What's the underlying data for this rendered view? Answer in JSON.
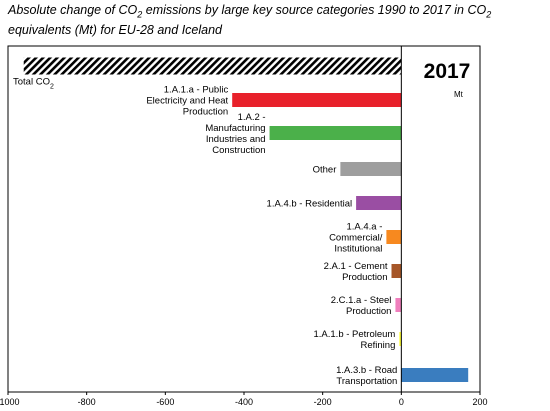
{
  "chart_data": {
    "type": "bar",
    "orientation": "horizontal",
    "title_parts": [
      {
        "text": "Absolute change of CO"
      },
      {
        "text": "2",
        "sub": true
      },
      {
        "text": " emissions by large key source categories 1990 to 2017 in CO"
      },
      {
        "text": "2",
        "sub": true
      },
      {
        "text": " equivalents (Mt) for EU-28 and Iceland"
      }
    ],
    "year_label": "2017",
    "unit_label": "Mt",
    "xlim": [
      -1000,
      200
    ],
    "xticks": [
      -1000,
      -800,
      -600,
      -400,
      -200,
      0,
      200
    ],
    "grid": false,
    "categories": [
      {
        "lines": [
          {
            "parts": [
              {
                "text": "Total CO"
              },
              {
                "text": "2",
                "sub": true
              }
            ]
          }
        ],
        "value": -960,
        "color": "#000000",
        "pattern": "hatch",
        "label_position": "below-left"
      },
      {
        "lines": [
          {
            "parts": [
              {
                "text": "1.A.1.a - Public"
              }
            ]
          },
          {
            "parts": [
              {
                "text": "Electricity and Heat"
              }
            ]
          },
          {
            "parts": [
              {
                "text": "Production"
              }
            ]
          }
        ],
        "value": -430,
        "color": "#e8212b"
      },
      {
        "lines": [
          {
            "parts": [
              {
                "text": "1.A.2 -"
              }
            ]
          },
          {
            "parts": [
              {
                "text": "Manufacturing"
              }
            ]
          },
          {
            "parts": [
              {
                "text": "Industries and"
              }
            ]
          },
          {
            "parts": [
              {
                "text": "Construction"
              }
            ]
          }
        ],
        "value": -335,
        "color": "#4bb04a"
      },
      {
        "lines": [
          {
            "parts": [
              {
                "text": "Other"
              }
            ]
          }
        ],
        "value": -155,
        "color": "#9e9e9e"
      },
      {
        "lines": [
          {
            "parts": [
              {
                "text": "1.A.4.b - Residential"
              }
            ]
          }
        ],
        "value": -115,
        "color": "#9a4ea3"
      },
      {
        "lines": [
          {
            "parts": [
              {
                "text": "1.A.4.a -"
              }
            ]
          },
          {
            "parts": [
              {
                "text": "Commercial/"
              }
            ]
          },
          {
            "parts": [
              {
                "text": "Institutional"
              }
            ]
          }
        ],
        "value": -38,
        "color": "#f7891f"
      },
      {
        "lines": [
          {
            "parts": [
              {
                "text": "2.A.1 - Cement"
              }
            ]
          },
          {
            "parts": [
              {
                "text": "Production"
              }
            ]
          }
        ],
        "value": -25,
        "color": "#a65628"
      },
      {
        "lines": [
          {
            "parts": [
              {
                "text": "2.C.1.a - Steel"
              }
            ]
          },
          {
            "parts": [
              {
                "text": "Production"
              }
            ]
          }
        ],
        "value": -15,
        "color": "#f07fbd"
      },
      {
        "lines": [
          {
            "parts": [
              {
                "text": "1.A.1.b - Petroleum"
              }
            ]
          },
          {
            "parts": [
              {
                "text": "Refining"
              }
            ]
          }
        ],
        "value": -5,
        "color": "#ffff33"
      },
      {
        "lines": [
          {
            "parts": [
              {
                "text": "1.A.3.b - Road"
              }
            ]
          },
          {
            "parts": [
              {
                "text": "Transportation"
              }
            ]
          }
        ],
        "value": 170,
        "color": "#3a7dbf"
      }
    ]
  }
}
